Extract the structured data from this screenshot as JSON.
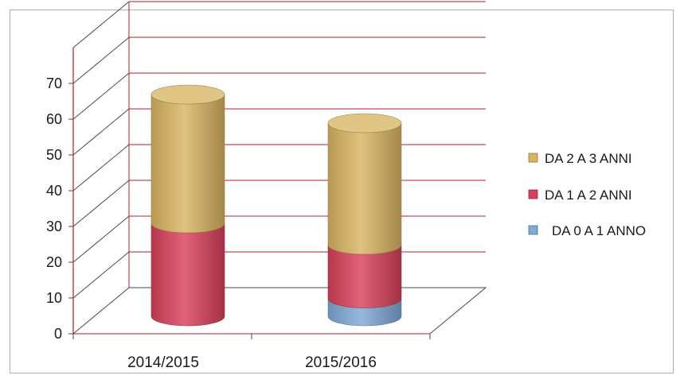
{
  "chart_data": {
    "type": "bar",
    "stacked": true,
    "style": "3d-cylinder",
    "categories": [
      "2014/2015",
      "2015/2016"
    ],
    "series": [
      {
        "name": "DA 0 A 1 ANNO",
        "values": [
          0,
          5
        ],
        "color": "#7fa9d6"
      },
      {
        "name": "DA 1 A 2 ANNI",
        "values": [
          26,
          15
        ],
        "color": "#d9415a"
      },
      {
        "name": "DA 2 A 3 ANNI",
        "values": [
          36,
          34
        ],
        "color": "#d9b562"
      }
    ],
    "y_ticks": [
      "0",
      "10",
      "20",
      "30",
      "40",
      "50",
      "60",
      "70"
    ],
    "ylim": [
      0,
      80
    ],
    "grid": true,
    "legend_position": "right",
    "legend_order": [
      "DA 2 A 3 ANNI",
      "DA 1 A 2 ANNI",
      "DA 0 A 1 ANNO"
    ],
    "gridline_color": "#b01c2e",
    "axis_color": "#4a4a4a"
  }
}
